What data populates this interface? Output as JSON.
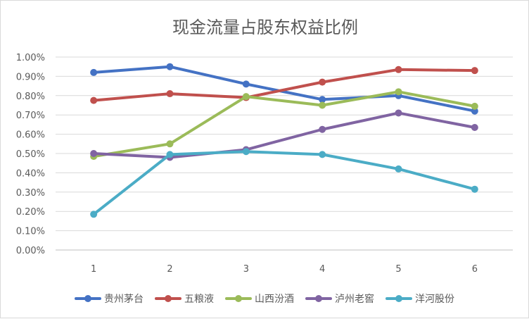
{
  "chart_data": {
    "type": "line",
    "title": "现金流量占股东权益比例",
    "xlabel": "",
    "ylabel": "",
    "categories": [
      "1",
      "2",
      "3",
      "4",
      "5",
      "6"
    ],
    "ylim": [
      0,
      0.01
    ],
    "yticks": [
      "0.00%",
      "0.10%",
      "0.20%",
      "0.30%",
      "0.40%",
      "0.50%",
      "0.60%",
      "0.70%",
      "0.80%",
      "0.90%",
      "1.00%"
    ],
    "grid": true,
    "legend_position": "bottom",
    "series": [
      {
        "name": "贵州茅台",
        "color": "#4472C4",
        "values": [
          0.0092,
          0.0095,
          0.0086,
          0.0078,
          0.008,
          0.0072
        ]
      },
      {
        "name": "五粮液",
        "color": "#C0504D",
        "values": [
          0.00775,
          0.0081,
          0.0079,
          0.0087,
          0.00935,
          0.0093
        ]
      },
      {
        "name": "山西汾酒",
        "color": "#9BBB59",
        "values": [
          0.00485,
          0.0055,
          0.00795,
          0.0075,
          0.0082,
          0.00745
        ]
      },
      {
        "name": "泸州老窖",
        "color": "#8064A2",
        "values": [
          0.005,
          0.0048,
          0.0052,
          0.00625,
          0.0071,
          0.00635
        ]
      },
      {
        "name": "洋河股份",
        "color": "#4BACC6",
        "values": [
          0.00185,
          0.00495,
          0.0051,
          0.00495,
          0.0042,
          0.00315
        ]
      }
    ]
  }
}
